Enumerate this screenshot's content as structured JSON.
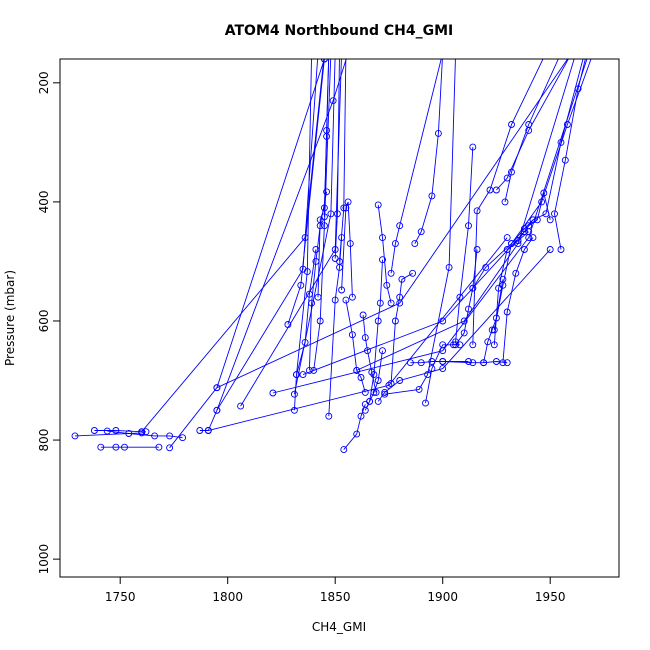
{
  "chart_data": {
    "type": "line",
    "title": "ATOM4 Northbound CH4_GMI",
    "xlabel": "CH4_GMI",
    "ylabel": "Pressure (mbar)",
    "xlim": [
      1722,
      1982
    ],
    "ylim": [
      1030,
      160
    ],
    "y_reversed": true,
    "grid": false,
    "xticks": [
      1750,
      1800,
      1850,
      1900,
      1950
    ],
    "yticks": [
      200,
      400,
      600,
      800,
      1000
    ],
    "colors": {
      "series": "#0000ff",
      "axis": "#000000"
    },
    "marker": "open-circle",
    "series": [
      {
        "points": [
          [
            1729,
            793
          ],
          [
            1760,
            788
          ],
          [
            1762,
            786
          ]
        ]
      },
      {
        "points": [
          [
            1738,
            784
          ],
          [
            1748,
            784
          ],
          [
            1760,
            786
          ],
          [
            1836,
            460
          ],
          [
            1845,
            150
          ]
        ]
      },
      {
        "points": [
          [
            1744,
            785
          ],
          [
            1754,
            789
          ],
          [
            1766,
            793
          ],
          [
            1773,
            793
          ],
          [
            1779,
            796
          ]
        ]
      },
      {
        "points": [
          [
            1741,
            812
          ],
          [
            1748,
            812
          ],
          [
            1752,
            812
          ],
          [
            1768,
            812
          ]
        ]
      },
      {
        "points": [
          [
            1773,
            813
          ],
          [
            1795,
            712
          ],
          [
            1845,
            160
          ]
        ]
      },
      {
        "points": [
          [
            1787,
            784
          ],
          [
            1791,
            784
          ],
          [
            1875,
            708
          ],
          [
            1930,
            460
          ]
        ]
      },
      {
        "points": [
          [
            1791,
            784
          ],
          [
            1795,
            750
          ],
          [
            1849,
            230
          ],
          [
            1856,
            150
          ]
        ]
      },
      {
        "points": [
          [
            1806,
            743
          ],
          [
            1850,
            480
          ],
          [
            1853,
            150
          ]
        ]
      },
      {
        "points": [
          [
            1795,
            712
          ],
          [
            1880,
            570
          ],
          [
            1960,
            150
          ]
        ]
      },
      {
        "points": [
          [
            1795,
            750
          ],
          [
            1835,
            513
          ],
          [
            1842,
            150
          ]
        ]
      },
      {
        "points": [
          [
            1821,
            721
          ],
          [
            1900,
            650
          ],
          [
            1940,
            460
          ],
          [
            1968,
            150
          ]
        ]
      },
      {
        "points": [
          [
            1828,
            606
          ],
          [
            1834,
            540
          ],
          [
            1845,
            160
          ]
        ]
      },
      {
        "points": [
          [
            1831,
            723
          ],
          [
            1848,
            420
          ],
          [
            1850,
            150
          ]
        ]
      },
      {
        "points": [
          [
            1831,
            750
          ],
          [
            1832,
            690
          ],
          [
            1837,
            517
          ],
          [
            1839,
            150
          ]
        ]
      },
      {
        "points": [
          [
            1832,
            690
          ],
          [
            1836,
            636
          ],
          [
            1838,
            555
          ],
          [
            1841,
            480
          ]
        ]
      },
      {
        "points": [
          [
            1838,
            683
          ],
          [
            1839,
            570
          ],
          [
            1841,
            500
          ],
          [
            1843,
            440
          ],
          [
            1846,
            383
          ]
        ]
      },
      {
        "points": [
          [
            1840,
            683
          ],
          [
            1843,
            600
          ],
          [
            1845,
            440
          ],
          [
            1848,
            150
          ]
        ]
      },
      {
        "points": [
          [
            1842,
            560
          ],
          [
            1843,
            430
          ],
          [
            1845,
            410
          ],
          [
            1846,
            290
          ],
          [
            1847,
            150
          ]
        ]
      },
      {
        "points": [
          [
            1845,
            425
          ],
          [
            1846,
            280
          ],
          [
            1847,
            150
          ]
        ]
      },
      {
        "points": [
          [
            1847,
            760
          ],
          [
            1850,
            565
          ],
          [
            1852,
            510
          ],
          [
            1853,
            460
          ]
        ]
      },
      {
        "points": [
          [
            1850,
            495
          ],
          [
            1851,
            420
          ],
          [
            1852,
            150
          ]
        ]
      },
      {
        "points": [
          [
            1852,
            500
          ],
          [
            1854,
            410
          ],
          [
            1855,
            150
          ]
        ]
      },
      {
        "points": [
          [
            1853,
            548
          ],
          [
            1855,
            410
          ],
          [
            1856,
            400
          ],
          [
            1857,
            470
          ],
          [
            1858,
            560
          ]
        ]
      },
      {
        "points": [
          [
            1854,
            816
          ],
          [
            1860,
            790
          ],
          [
            1862,
            760
          ],
          [
            1864,
            740
          ]
        ]
      },
      {
        "points": [
          [
            1855,
            565
          ],
          [
            1858,
            623
          ],
          [
            1860,
            683
          ],
          [
            1862,
            695
          ],
          [
            1864,
            720
          ]
        ]
      },
      {
        "points": [
          [
            1863,
            590
          ],
          [
            1864,
            628
          ],
          [
            1865,
            650
          ],
          [
            1867,
            686
          ],
          [
            1869,
            720
          ]
        ]
      },
      {
        "points": [
          [
            1864,
            750
          ],
          [
            1866,
            735
          ],
          [
            1868,
            720
          ],
          [
            1870,
            700
          ],
          [
            1872,
            650
          ]
        ]
      },
      {
        "points": [
          [
            1866,
            735
          ],
          [
            1868,
            690
          ],
          [
            1870,
            600
          ],
          [
            1871,
            570
          ],
          [
            1872,
            497
          ]
        ]
      },
      {
        "points": [
          [
            1870,
            735
          ],
          [
            1873,
            720
          ],
          [
            1880,
            700
          ],
          [
            1900,
            680
          ],
          [
            1950,
            480
          ]
        ]
      },
      {
        "points": [
          [
            1870,
            405
          ],
          [
            1872,
            460
          ],
          [
            1874,
            540
          ],
          [
            1876,
            570
          ]
        ]
      },
      {
        "points": [
          [
            1876,
            705
          ],
          [
            1878,
            600
          ],
          [
            1880,
            560
          ],
          [
            1881,
            530
          ],
          [
            1886,
            520
          ]
        ]
      },
      {
        "points": [
          [
            1876,
            520
          ],
          [
            1878,
            470
          ],
          [
            1880,
            440
          ],
          [
            1900,
            150
          ]
        ]
      },
      {
        "points": [
          [
            1873,
            723
          ],
          [
            1889,
            715
          ],
          [
            1893,
            690
          ],
          [
            1903,
            510
          ],
          [
            1906,
            150
          ]
        ]
      },
      {
        "points": [
          [
            1885,
            670
          ],
          [
            1890,
            670
          ],
          [
            1895,
            668
          ],
          [
            1900,
            668
          ],
          [
            1912,
            668
          ]
        ]
      },
      {
        "points": [
          [
            1887,
            470
          ],
          [
            1890,
            450
          ],
          [
            1895,
            390
          ],
          [
            1898,
            285
          ],
          [
            1900,
            150
          ]
        ]
      },
      {
        "points": [
          [
            1892,
            738
          ],
          [
            1895,
            680
          ],
          [
            1900,
            640
          ],
          [
            1905,
            640
          ],
          [
            1908,
            640
          ]
        ]
      },
      {
        "points": [
          [
            1906,
            640
          ],
          [
            1910,
            620
          ],
          [
            1912,
            580
          ],
          [
            1914,
            545
          ],
          [
            1916,
            480
          ]
        ]
      },
      {
        "points": [
          [
            1906,
            635
          ],
          [
            1908,
            560
          ],
          [
            1912,
            440
          ],
          [
            1914,
            308
          ]
        ]
      },
      {
        "points": [
          [
            1900,
            668
          ],
          [
            1914,
            670
          ],
          [
            1919,
            670
          ],
          [
            1925,
            668
          ],
          [
            1930,
            670
          ]
        ]
      },
      {
        "points": [
          [
            1914,
            640
          ],
          [
            1916,
            415
          ],
          [
            1922,
            380
          ],
          [
            1932,
            270
          ],
          [
            1948,
            150
          ]
        ]
      },
      {
        "points": [
          [
            1919,
            670
          ],
          [
            1921,
            635
          ],
          [
            1923,
            615
          ],
          [
            1925,
            595
          ],
          [
            1928,
            530
          ]
        ]
      },
      {
        "points": [
          [
            1924,
            640
          ],
          [
            1926,
            545
          ],
          [
            1930,
            480
          ],
          [
            1935,
            465
          ],
          [
            1940,
            450
          ]
        ]
      },
      {
        "points": [
          [
            1924,
            615
          ],
          [
            1928,
            540
          ],
          [
            1932,
            470
          ],
          [
            1938,
            445
          ],
          [
            1942,
            430
          ]
        ]
      },
      {
        "points": [
          [
            1928,
            670
          ],
          [
            1930,
            585
          ],
          [
            1934,
            520
          ],
          [
            1938,
            480
          ],
          [
            1942,
            460
          ]
        ]
      },
      {
        "points": [
          [
            1929,
            400
          ],
          [
            1932,
            350
          ],
          [
            1940,
            270
          ],
          [
            1955,
            150
          ]
        ]
      },
      {
        "points": [
          [
            1925,
            380
          ],
          [
            1930,
            360
          ],
          [
            1940,
            280
          ],
          [
            1960,
            150
          ]
        ]
      },
      {
        "points": [
          [
            1935,
            465
          ],
          [
            1940,
            440
          ],
          [
            1944,
            430
          ],
          [
            1947,
            385
          ],
          [
            1950,
            430
          ]
        ]
      },
      {
        "points": [
          [
            1938,
            450
          ],
          [
            1942,
            430
          ],
          [
            1948,
            420
          ],
          [
            1955,
            300
          ],
          [
            1966,
            150
          ]
        ]
      },
      {
        "points": [
          [
            1955,
            480
          ],
          [
            1952,
            420
          ],
          [
            1957,
            330
          ],
          [
            1963,
            210
          ],
          [
            1967,
            150
          ]
        ]
      },
      {
        "points": [
          [
            1914,
            545
          ],
          [
            1920,
            510
          ],
          [
            1932,
            470
          ],
          [
            1946,
            400
          ],
          [
            1958,
            270
          ],
          [
            1970,
            150
          ]
        ]
      },
      {
        "points": [
          [
            1860,
            683
          ],
          [
            1910,
            600
          ],
          [
            1935,
            470
          ],
          [
            1962,
            150
          ]
        ]
      },
      {
        "points": [
          [
            1835,
            690
          ],
          [
            1900,
            600
          ],
          [
            1938,
            450
          ]
        ]
      }
    ]
  }
}
